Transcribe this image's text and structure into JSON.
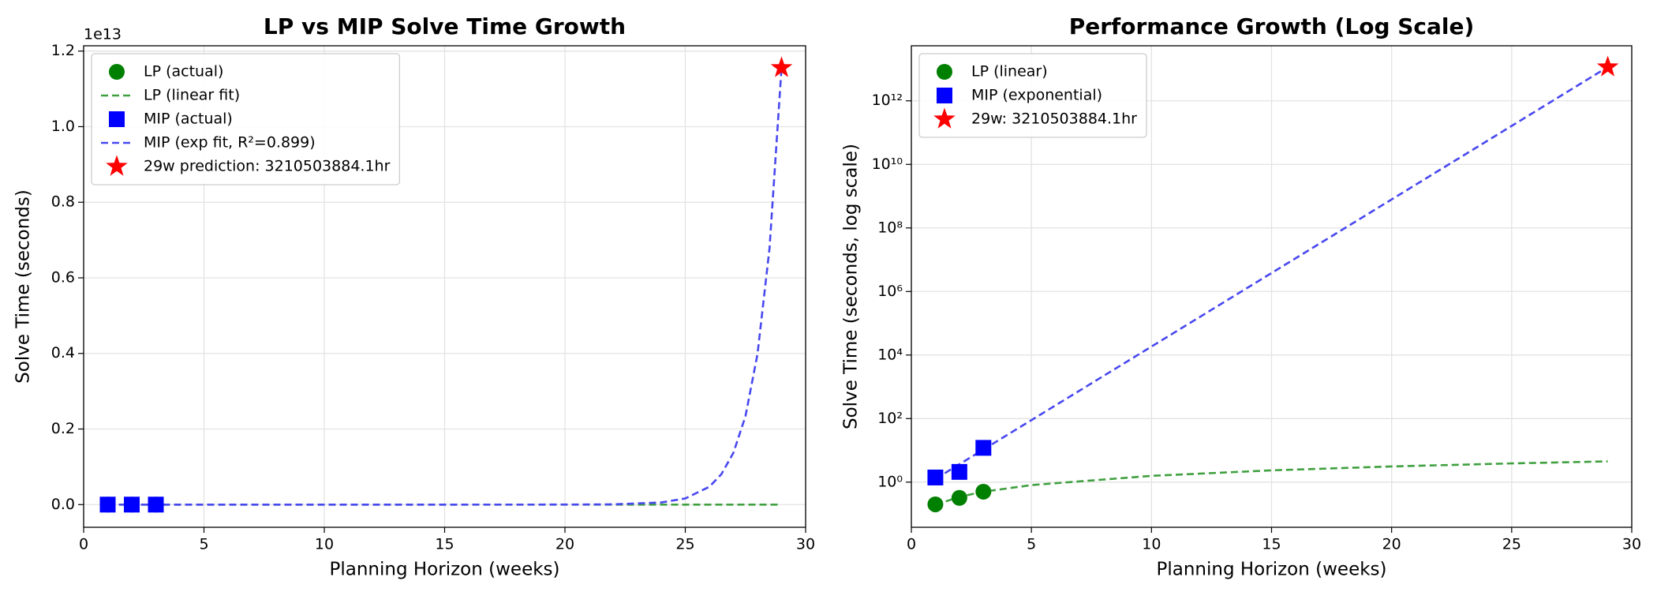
{
  "chart_data": [
    {
      "type": "scatter",
      "title": "LP vs MIP Solve Time Growth",
      "x_label": "Planning Horizon (weeks)",
      "y_label": "Solve Time (seconds)",
      "y_offset_label": "1e13",
      "xlim": [
        0,
        30
      ],
      "xticks": [
        0,
        5,
        10,
        15,
        20,
        25,
        30
      ],
      "ylim": [
        -600000000000,
        12140000000000
      ],
      "log_y": false,
      "grid": true,
      "legend": "upper left",
      "yticks": [
        {
          "value": 0,
          "label": "0.0"
        },
        {
          "value": 2000000000000,
          "label": "0.2"
        },
        {
          "value": 4000000000000,
          "label": "0.4"
        },
        {
          "value": 6000000000000,
          "label": "0.6"
        },
        {
          "value": 8000000000000,
          "label": "0.8"
        },
        {
          "value": 10000000000000,
          "label": "1.0"
        },
        {
          "value": 12000000000000,
          "label": "1.2"
        }
      ],
      "series": [
        {
          "name": "LP (actual)",
          "color": "#008000",
          "marker": "o",
          "x": [
            1,
            2,
            3
          ],
          "values": [
            0.2,
            0.32,
            0.5
          ]
        },
        {
          "name": "LP (linear fit)",
          "color": "#40a040",
          "linestyle": "--",
          "x": [
            1,
            2,
            3,
            5,
            10,
            15,
            20,
            25,
            29
          ],
          "values": [
            0.192,
            0.346,
            0.5,
            0.808,
            1.578,
            2.348,
            3.118,
            3.888,
            4.504
          ]
        },
        {
          "name": "MIP (actual)",
          "color": "#0000ff",
          "marker": "s",
          "x": [
            1,
            2,
            3
          ],
          "values": [
            1.4,
            2.1,
            12
          ]
        },
        {
          "name": "MIP (exp fit, R²=0.899)",
          "color": "#4848f0",
          "linestyle": "--",
          "x": [
            1,
            5,
            10,
            15,
            20,
            22,
            24,
            25,
            26,
            26.5,
            27,
            27.5,
            28,
            28.5,
            29
          ],
          "values": [
            1.26,
            89.5,
            18480,
            3810000,
            788000000,
            6640000000,
            56000000000,
            163000000000,
            472000000000,
            804000000000,
            1371000000000,
            2336000000000,
            3980000000000,
            6780000000000,
            11558000000000
          ]
        },
        {
          "name": "29w prediction: 3210503884.1hr",
          "color": "#ff0000",
          "marker": "*",
          "x": [
            29
          ],
          "values": [
            11558000000000
          ]
        }
      ]
    },
    {
      "type": "scatter",
      "title": "Performance Growth (Log Scale)",
      "x_label": "Planning Horizon (weeks)",
      "y_label": "Solve Time (seconds, log scale)",
      "xlim": [
        0,
        30
      ],
      "xticks": [
        0,
        5,
        10,
        15,
        20,
        25,
        30
      ],
      "ylim": [
        0.038,
        54000000000000
      ],
      "log_y": true,
      "grid": true,
      "legend": "upper left",
      "yticks": [
        {
          "value": 1,
          "label": "10⁰"
        },
        {
          "value": 100,
          "label": "10²"
        },
        {
          "value": 10000,
          "label": "10⁴"
        },
        {
          "value": 1000000,
          "label": "10⁶"
        },
        {
          "value": 100000000,
          "label": "10⁸"
        },
        {
          "value": 10000000000,
          "label": "10¹⁰"
        },
        {
          "value": 1000000000000,
          "label": "10¹²"
        }
      ],
      "series": [
        {
          "color": "#40a040",
          "linestyle": "--",
          "x": [
            1,
            2,
            3,
            5,
            10,
            15,
            20,
            25,
            29
          ],
          "values": [
            0.192,
            0.346,
            0.5,
            0.808,
            1.578,
            2.348,
            3.118,
            3.888,
            4.504
          ]
        },
        {
          "color": "#4848f0",
          "linestyle": "--",
          "x": [
            1,
            5,
            10,
            15,
            20,
            22,
            24,
            25,
            26,
            26.5,
            27,
            27.5,
            28,
            28.5,
            29
          ],
          "values": [
            1.26,
            89.5,
            18480,
            3810000,
            788000000,
            6640000000,
            56000000000,
            163000000000,
            472000000000,
            804000000000,
            1371000000000,
            2336000000000,
            3980000000000,
            6780000000000,
            11558000000000
          ]
        },
        {
          "name": "LP (linear)",
          "color": "#008000",
          "marker": "o",
          "x": [
            1,
            2,
            3
          ],
          "values": [
            0.2,
            0.32,
            0.5
          ]
        },
        {
          "name": "MIP (exponential)",
          "color": "#0000ff",
          "marker": "s",
          "x": [
            1,
            2,
            3
          ],
          "values": [
            1.4,
            2.1,
            12
          ]
        },
        {
          "name": "29w: 3210503884.1hr",
          "color": "#ff0000",
          "marker": "*",
          "x": [
            29
          ],
          "values": [
            11558000000000
          ]
        }
      ]
    }
  ]
}
